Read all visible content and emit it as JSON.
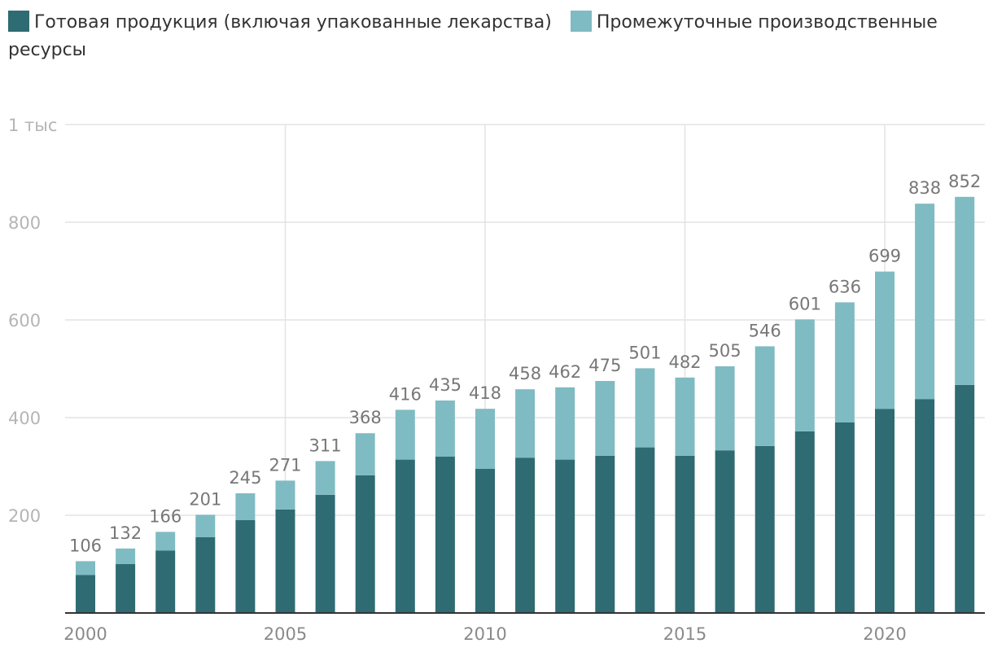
{
  "chart_data": {
    "type": "bar",
    "stacked": true,
    "title": "",
    "xlabel": "",
    "ylabel": "",
    "ylim": [
      0,
      1000
    ],
    "grid": true,
    "legend_position": "top-left",
    "colors": {
      "finished": "#2e6b73",
      "intermediate": "#7fbbc2"
    },
    "y_ticks": [
      {
        "value": 200,
        "label": "200"
      },
      {
        "value": 400,
        "label": "400"
      },
      {
        "value": 600,
        "label": "600"
      },
      {
        "value": 800,
        "label": "800"
      },
      {
        "value": 1000,
        "label": "1 тыс"
      }
    ],
    "x_ticks": [
      {
        "value": 2000,
        "label": "2000"
      },
      {
        "value": 2005,
        "label": "2005"
      },
      {
        "value": 2010,
        "label": "2010"
      },
      {
        "value": 2015,
        "label": "2015"
      },
      {
        "value": 2020,
        "label": "2020"
      }
    ],
    "x_gridlines": [
      2005,
      2010,
      2015,
      2020
    ],
    "categories": [
      2000,
      2001,
      2002,
      2003,
      2004,
      2005,
      2006,
      2007,
      2008,
      2009,
      2010,
      2011,
      2012,
      2013,
      2014,
      2015,
      2016,
      2017,
      2018,
      2019,
      2020,
      2021,
      2022
    ],
    "series": [
      {
        "key": "finished",
        "name": "Готовая продукция (включая упакованные лекарства)",
        "values": [
          78,
          100,
          128,
          155,
          190,
          212,
          242,
          282,
          314,
          320,
          295,
          318,
          314,
          322,
          339,
          322,
          333,
          342,
          372,
          390,
          418,
          438,
          467
        ]
      },
      {
        "key": "intermediate",
        "name": "Промежуточные производственные ресурсы",
        "values": [
          28,
          32,
          38,
          46,
          55,
          59,
          69,
          86,
          102,
          115,
          123,
          140,
          148,
          153,
          162,
          160,
          172,
          204,
          229,
          246,
          281,
          400,
          385
        ]
      }
    ],
    "totals": [
      106,
      132,
      166,
      201,
      245,
      271,
      311,
      368,
      416,
      435,
      418,
      458,
      462,
      475,
      501,
      482,
      505,
      546,
      601,
      636,
      699,
      838,
      852
    ]
  }
}
